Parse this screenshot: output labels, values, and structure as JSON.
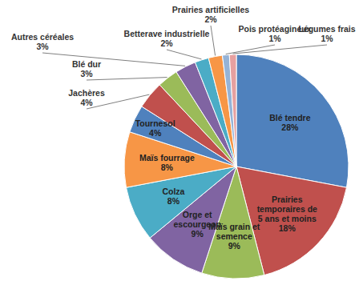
{
  "chart_data": {
    "type": "pie",
    "categories": [
      "Blé tendre",
      "Prairies temporaires de 5 ans et moins",
      "Maïs grain et semence",
      "Orge et escourgeon",
      "Colza",
      "Maïs fourrage",
      "Tournesol",
      "Jachères",
      "Blé dur",
      "Autres céréales",
      "Betterave industrielle",
      "Prairies artificielles",
      "Pois protéagineux",
      "Légumes frais"
    ],
    "values": [
      28,
      18,
      9,
      9,
      8,
      8,
      4,
      4,
      3,
      3,
      2,
      2,
      1,
      1
    ],
    "value_labels": [
      "28%",
      "18%",
      "9%",
      "9%",
      "8%",
      "8%",
      "4%",
      "4%",
      "3%",
      "3%",
      "2%",
      "2%",
      "1%",
      "1%"
    ],
    "colors": [
      "#4f81bd",
      "#c0504d",
      "#9bbb59",
      "#8064a2",
      "#4bacc6",
      "#f79646",
      "#4f81bd",
      "#c0504d",
      "#9bbb59",
      "#8064a2",
      "#4bacc6",
      "#f79646",
      "#95b3d7",
      "#e6a0a0"
    ],
    "data_labels": true
  }
}
